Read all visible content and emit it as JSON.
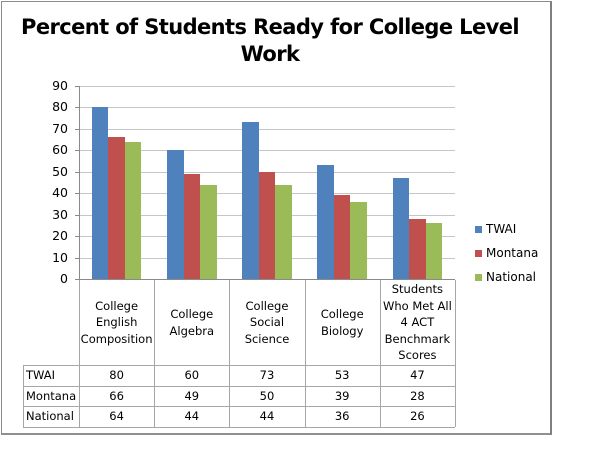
{
  "chart_data": {
    "type": "bar",
    "title": "Percent of Students Ready for College Level Work",
    "title_lines": [
      "Percent of Students Ready for College Level",
      "Work"
    ],
    "categories": [
      "College English Composition",
      "College Algebra",
      "College Social Science",
      "College Biology",
      "Students Who Met All 4 ACT Benchmark Scores"
    ],
    "category_lines": [
      [
        "College",
        "English",
        "Composition"
      ],
      [
        "College",
        "Algebra"
      ],
      [
        "College",
        "Social",
        "Science"
      ],
      [
        "College",
        "Biology"
      ],
      [
        "Students",
        "Who Met All",
        "4 ACT",
        "Benchmark",
        "Scores"
      ]
    ],
    "series": [
      {
        "name": "TWAI",
        "color": "#4f81bd",
        "values": [
          80,
          60,
          73,
          53,
          47
        ]
      },
      {
        "name": "Montana",
        "color": "#c0504d",
        "values": [
          66,
          49,
          50,
          39,
          28
        ]
      },
      {
        "name": "National",
        "color": "#9bbb59",
        "values": [
          64,
          44,
          44,
          36,
          26
        ]
      }
    ],
    "xlabel": "",
    "ylabel": "",
    "ylim": [
      0,
      90
    ],
    "yticks": [
      "0",
      "10",
      "20",
      "30",
      "40",
      "50",
      "60",
      "70",
      "80",
      "90"
    ],
    "grid": true,
    "legend_position": "right",
    "data_table": true
  }
}
